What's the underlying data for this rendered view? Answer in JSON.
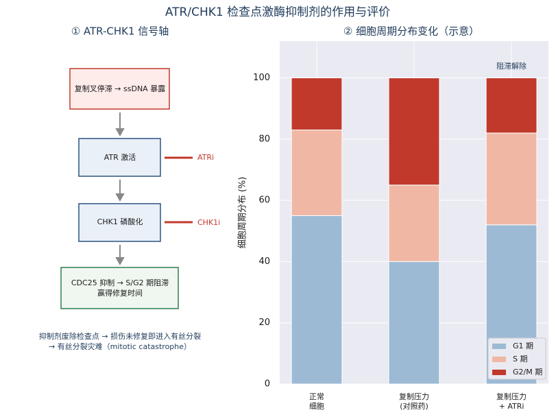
{
  "title": "ATR/CHK1 检查点激酶抑制剂的作用与评价",
  "diagram": {
    "title": "① ATR-CHK1 信号轴",
    "nodes": [
      {
        "lines": [
          "复制叉停滞 → ssDNA 暴露"
        ]
      },
      {
        "lines": [
          "ATR 激活"
        ]
      },
      {
        "lines": [
          "CHK1 磷酸化"
        ]
      },
      {
        "lines": [
          "CDC25 抑制 → S/G2 期阻滞",
          "赢得修复时间"
        ]
      }
    ],
    "inhibitors": [
      "ATRi",
      "CHK1i"
    ],
    "note": [
      "抑制剂废除检查点 → 损伤未修复即进入有丝分裂",
      "→ 有丝分裂灾难（mitotic catastrophe）"
    ]
  },
  "chart_data": {
    "type": "stacked_bar",
    "title": "② 细胞周期分布变化（示意）",
    "ylabel": "细胞周期分布 (%)",
    "categories": [
      "正常\n细胞",
      "复制压力\n(对照药)",
      "复制压力\n+ ATRi"
    ],
    "series": [
      {
        "name": "G1 期",
        "color": "#9dbad5",
        "values": [
          55,
          40,
          52
        ]
      },
      {
        "name": "S 期",
        "color": "#f0b8a4",
        "values": [
          28,
          25,
          30
        ]
      },
      {
        "name": "G2/M 期",
        "color": "#c0392b",
        "values": [
          17,
          35,
          18
        ]
      }
    ],
    "annotation": "阻滞解除",
    "ylim": [
      0,
      112
    ],
    "yticks": [
      0,
      20,
      40,
      60,
      80,
      100
    ],
    "grid": true,
    "legend": "lower right"
  }
}
